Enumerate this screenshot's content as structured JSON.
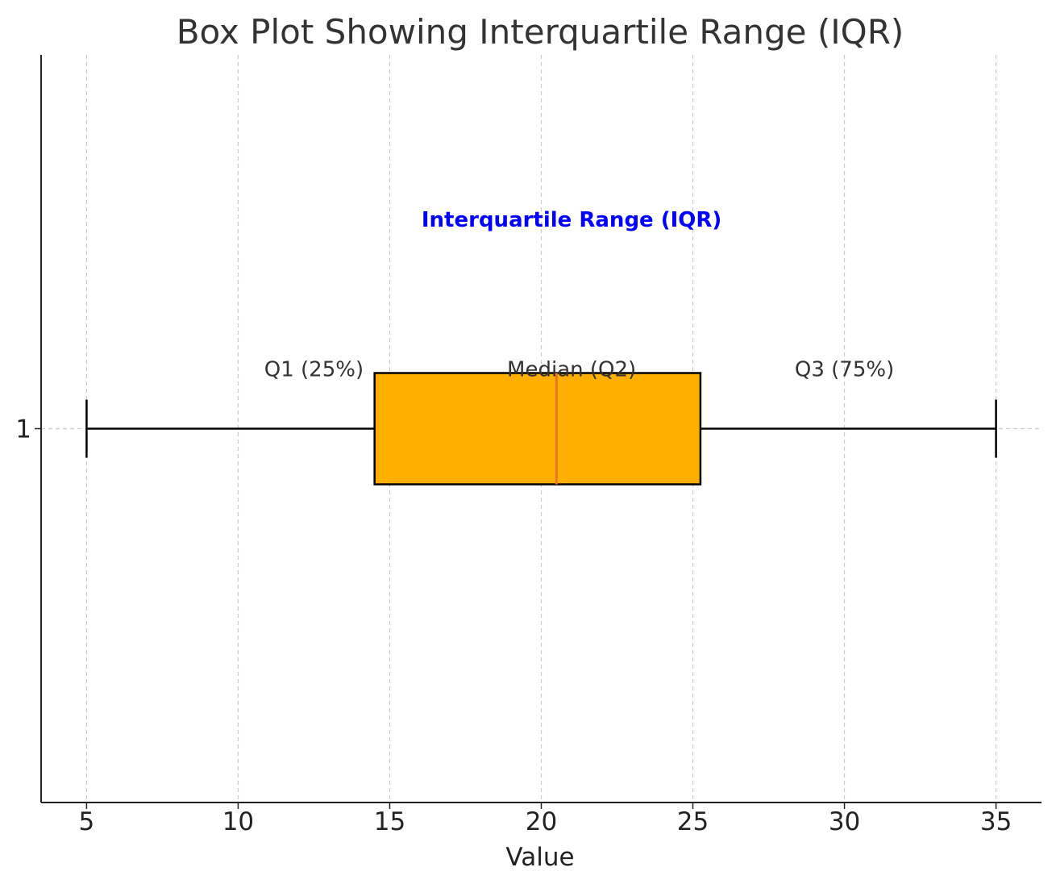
{
  "chart_data": {
    "type": "box",
    "title": "Box Plot Showing Interquartile Range (IQR)",
    "xlabel": "Value",
    "ylabel": "",
    "orientation": "horizontal",
    "xlim": [
      3.5,
      36.5
    ],
    "xticks": [
      5,
      10,
      15,
      20,
      25,
      30,
      35
    ],
    "yticks": [
      "1"
    ],
    "grid": true,
    "boxes": [
      {
        "position": "1",
        "whisker_low": 5,
        "q1": 14.5,
        "median": 20.5,
        "q3": 25.25,
        "whisker_high": 35
      }
    ],
    "annotations": [
      {
        "text": "Q1 (25%)",
        "x": 12.5,
        "y": 1.08
      },
      {
        "text": "Median (Q2)",
        "x": 21,
        "y": 1.08
      },
      {
        "text": "Q3 (75%)",
        "x": 30,
        "y": 1.08
      },
      {
        "text": "Interquartile Range (IQR)",
        "x": 21,
        "y": 1.28,
        "color": "#0000ff",
        "bold": true
      }
    ],
    "colors": {
      "box_fill": "#ffaf00",
      "box_edge": "#000000",
      "median": "#e8732a",
      "grid": "#cccccc"
    }
  }
}
